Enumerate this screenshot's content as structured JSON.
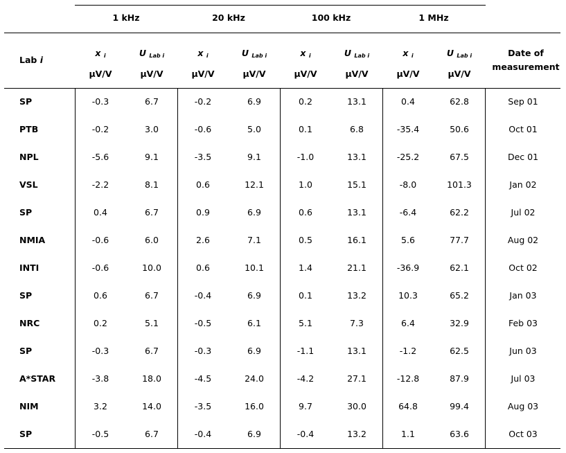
{
  "table": {
    "frequencies": [
      "1 kHz",
      "20 kHz",
      "100 kHz",
      "1 MHz"
    ],
    "lab_header": "Lab",
    "lab_header_var": "i",
    "x_symbol": "x",
    "x_sub": "i",
    "u_symbol": "U",
    "u_sub": "Lab i",
    "unit": "μV/V",
    "date_header_line1": "Date of",
    "date_header_line2": "measurement",
    "rows": [
      {
        "lab": "SP",
        "v": [
          "-0.3",
          "6.7",
          "-0.2",
          "6.9",
          "0.2",
          "13.1",
          "0.4",
          "62.8"
        ],
        "date": "Sep 01"
      },
      {
        "lab": "PTB",
        "v": [
          "-0.2",
          "3.0",
          "-0.6",
          "5.0",
          "0.1",
          "6.8",
          "-35.4",
          "50.6"
        ],
        "date": "Oct 01"
      },
      {
        "lab": "NPL",
        "v": [
          "-5.6",
          "9.1",
          "-3.5",
          "9.1",
          "-1.0",
          "13.1",
          "-25.2",
          "67.5"
        ],
        "date": "Dec 01"
      },
      {
        "lab": "VSL",
        "v": [
          "-2.2",
          "8.1",
          "0.6",
          "12.1",
          "1.0",
          "15.1",
          "-8.0",
          "101.3"
        ],
        "date": "Jan 02"
      },
      {
        "lab": "SP",
        "v": [
          "0.4",
          "6.7",
          "0.9",
          "6.9",
          "0.6",
          "13.1",
          "-6.4",
          "62.2"
        ],
        "date": "Jul 02"
      },
      {
        "lab": "NMIA",
        "v": [
          "-0.6",
          "6.0",
          "2.6",
          "7.1",
          "0.5",
          "16.1",
          "5.6",
          "77.7"
        ],
        "date": "Aug 02"
      },
      {
        "lab": "INTI",
        "v": [
          "-0.6",
          "10.0",
          "0.6",
          "10.1",
          "1.4",
          "21.1",
          "-36.9",
          "62.1"
        ],
        "date": "Oct 02"
      },
      {
        "lab": "SP",
        "v": [
          "0.6",
          "6.7",
          "-0.4",
          "6.9",
          "0.1",
          "13.2",
          "10.3",
          "65.2"
        ],
        "date": "Jan 03"
      },
      {
        "lab": "NRC",
        "v": [
          "0.2",
          "5.1",
          "-0.5",
          "6.1",
          "5.1",
          "7.3",
          "6.4",
          "32.9"
        ],
        "date": "Feb 03"
      },
      {
        "lab": "SP",
        "v": [
          "-0.3",
          "6.7",
          "-0.3",
          "6.9",
          "-1.1",
          "13.1",
          "-1.2",
          "62.5"
        ],
        "date": "Jun 03"
      },
      {
        "lab": "A*STAR",
        "v": [
          "-3.8",
          "18.0",
          "-4.5",
          "24.0",
          "-4.2",
          "27.1",
          "-12.8",
          "87.9"
        ],
        "date": "Jul 03"
      },
      {
        "lab": "NIM",
        "v": [
          "3.2",
          "14.0",
          "-3.5",
          "16.0",
          "9.7",
          "30.0",
          "64.8",
          "99.4"
        ],
        "date": "Aug 03"
      },
      {
        "lab": "SP",
        "v": [
          "-0.5",
          "6.7",
          "-0.4",
          "6.9",
          "-0.4",
          "13.2",
          "1.1",
          "63.6"
        ],
        "date": "Oct 03"
      }
    ]
  }
}
